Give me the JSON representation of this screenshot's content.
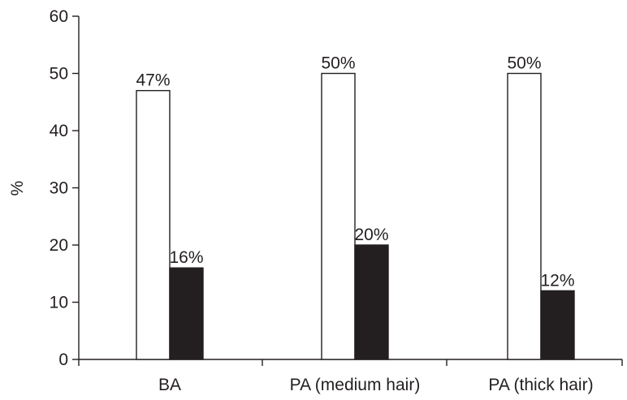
{
  "chart_data": {
    "type": "bar",
    "title": "",
    "xlabel": "",
    "ylabel": "%",
    "ylim": [
      0,
      60
    ],
    "yticks": [
      0,
      10,
      20,
      30,
      40,
      50,
      60
    ],
    "categories": [
      "BA",
      "PA (medium hair)",
      "PA (thick hair)"
    ],
    "series": [
      {
        "values": [
          47,
          50,
          50
        ],
        "labels": [
          "47%",
          "50%",
          "50%"
        ],
        "color": "#ffffff"
      },
      {
        "values": [
          16,
          20,
          12
        ],
        "labels": [
          "16%",
          "20%",
          "12%"
        ],
        "color": "#231f20"
      }
    ],
    "grid": false,
    "legend": "none"
  }
}
